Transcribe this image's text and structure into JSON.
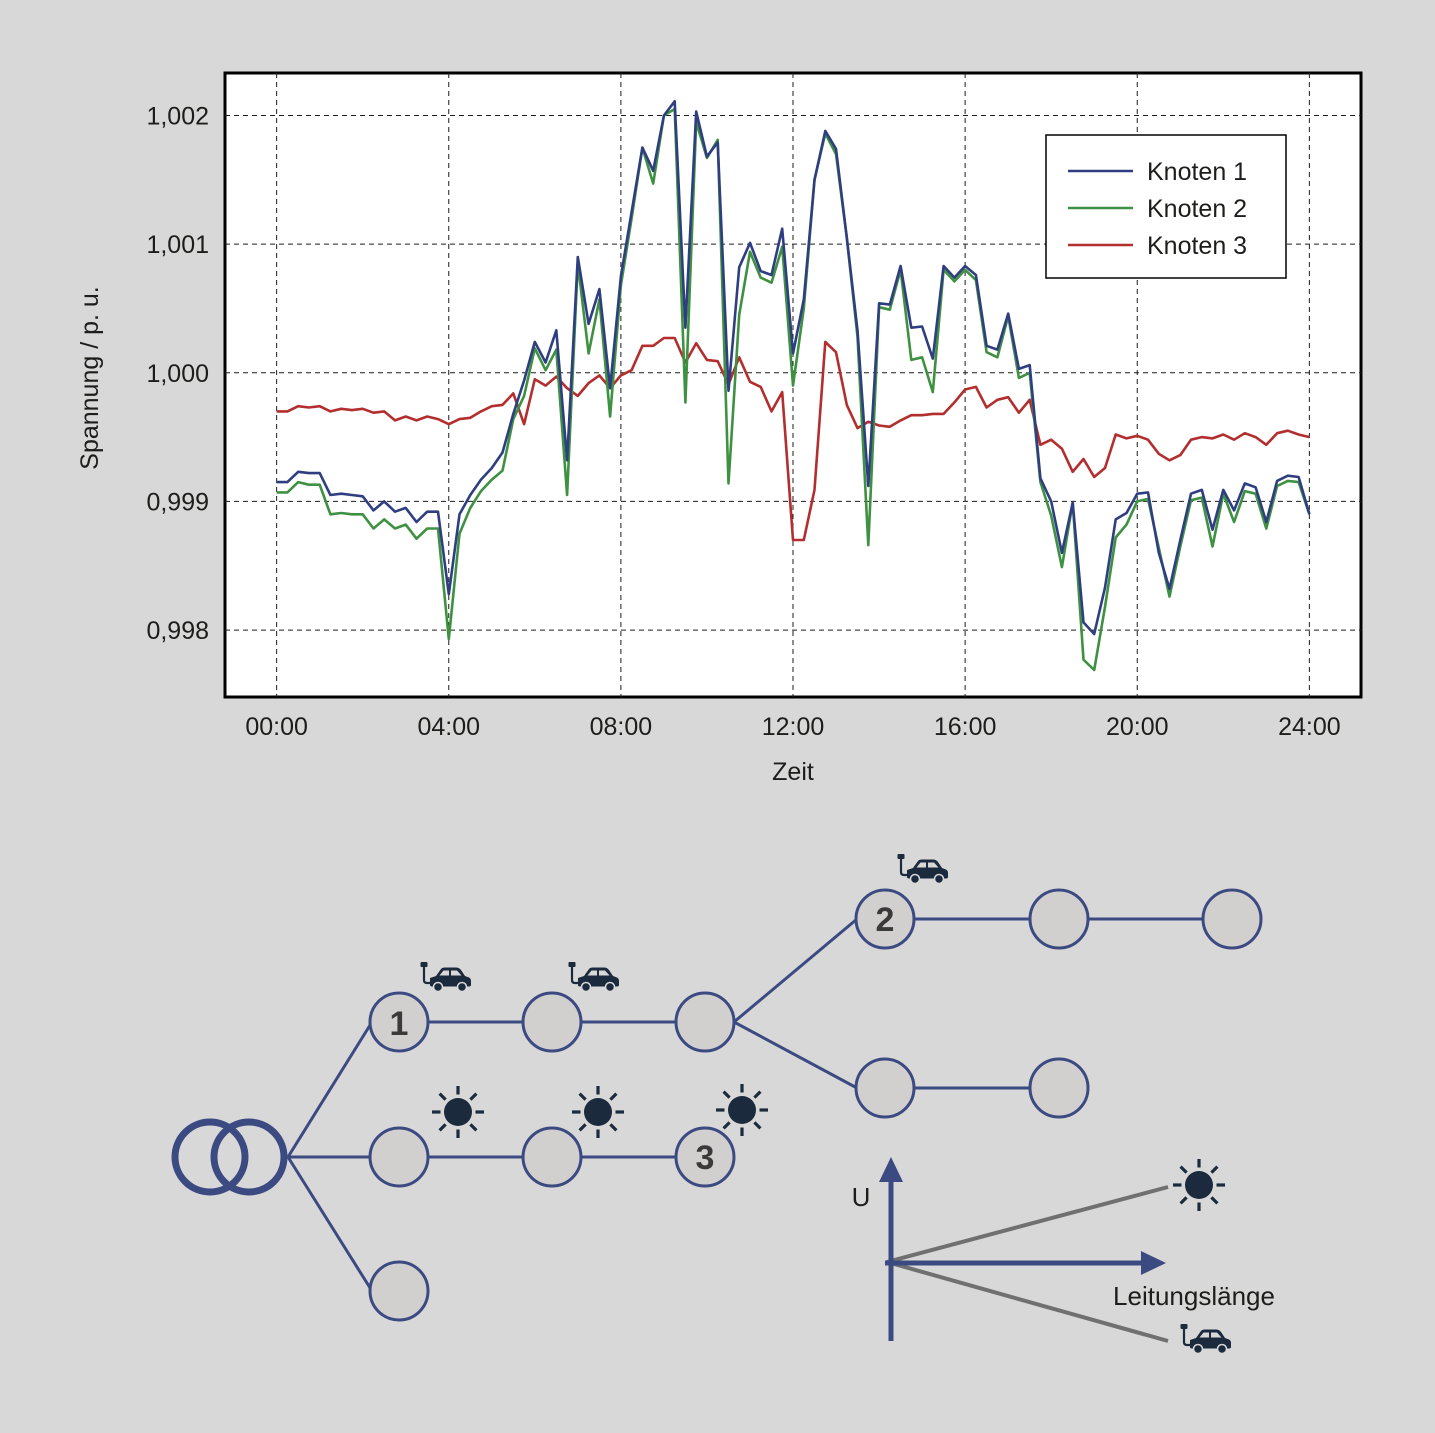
{
  "chart_data": {
    "type": "line",
    "xlabel": "Zeit",
    "ylabel": "Spannung / p. u.",
    "x_ticks": [
      "00:00",
      "04:00",
      "08:00",
      "12:00",
      "16:00",
      "20:00",
      "24:00"
    ],
    "y_ticks": [
      "0,998",
      "0,999",
      "1,000",
      "1,001",
      "1,002"
    ],
    "xlim_hours": [
      -1.2,
      25.2
    ],
    "ylim": [
      0.99748,
      1.00233
    ],
    "grid": true,
    "legend_position": "top-right",
    "series": [
      {
        "name": "Knoten 1",
        "color": "#2f3e80",
        "x": [
          0,
          0.25,
          0.5,
          0.75,
          1,
          1.25,
          1.5,
          1.75,
          2,
          2.25,
          2.5,
          2.75,
          3,
          3.25,
          3.5,
          3.75,
          4,
          4.25,
          4.5,
          4.75,
          5,
          5.25,
          5.5,
          5.75,
          6,
          6.25,
          6.5,
          6.75,
          7,
          7.25,
          7.5,
          7.75,
          8,
          8.25,
          8.5,
          8.75,
          9,
          9.25,
          9.5,
          9.75,
          10,
          10.25,
          10.5,
          10.75,
          11,
          11.25,
          11.5,
          11.75,
          12,
          12.25,
          12.5,
          12.75,
          13,
          13.25,
          13.5,
          13.75,
          14,
          14.25,
          14.5,
          14.75,
          15,
          15.25,
          15.5,
          15.75,
          16,
          16.25,
          16.5,
          16.75,
          17,
          17.25,
          17.5,
          17.75,
          18,
          18.25,
          18.5,
          18.75,
          19,
          19.25,
          19.5,
          19.75,
          20,
          20.25,
          20.5,
          20.75,
          21,
          21.25,
          21.5,
          21.75,
          22,
          22.25,
          22.5,
          22.75,
          23,
          23.25,
          23.5,
          23.75,
          24
        ],
        "values": [
          0.99915,
          0.99915,
          0.99923,
          0.99922,
          0.99922,
          0.99905,
          0.99906,
          0.99905,
          0.99904,
          0.99893,
          0.999,
          0.99892,
          0.99895,
          0.99884,
          0.99892,
          0.99892,
          0.99828,
          0.9989,
          0.99905,
          0.99917,
          0.99926,
          0.99938,
          0.99968,
          0.99994,
          1.00024,
          1.00008,
          1.00033,
          0.99932,
          1.0009,
          1.00038,
          1.00065,
          0.99988,
          1.00075,
          1.00125,
          1.00175,
          1.00157,
          1.002,
          1.00211,
          1.00035,
          1.00203,
          1.00168,
          1.00179,
          0.99986,
          1.00082,
          1.00101,
          1.00079,
          1.00076,
          1.00112,
          1.00015,
          1.00057,
          1.0015,
          1.00188,
          1.00174,
          1.00105,
          1.00033,
          0.99912,
          1.00054,
          1.00053,
          1.00083,
          1.00035,
          1.00036,
          1.00011,
          1.00083,
          1.00074,
          1.00083,
          1.00076,
          1.00021,
          1.00018,
          1.00046,
          1.00003,
          1.00006,
          0.99918,
          0.999,
          0.9986,
          0.99899,
          0.99806,
          0.99797,
          0.99833,
          0.99886,
          0.99891,
          0.99906,
          0.99907,
          0.9986,
          0.99832,
          0.9987,
          0.99906,
          0.99909,
          0.99878,
          0.99909,
          0.99893,
          0.99914,
          0.99911,
          0.99884,
          0.99916,
          0.9992,
          0.99919,
          0.9989
        ]
      },
      {
        "name": "Knoten 2",
        "color": "#3f9142",
        "x": [
          0,
          0.25,
          0.5,
          0.75,
          1,
          1.25,
          1.5,
          1.75,
          2,
          2.25,
          2.5,
          2.75,
          3,
          3.25,
          3.5,
          3.75,
          4,
          4.25,
          4.5,
          4.75,
          5,
          5.25,
          5.5,
          5.75,
          6,
          6.25,
          6.5,
          6.75,
          7,
          7.25,
          7.5,
          7.75,
          8,
          8.25,
          8.5,
          8.75,
          9,
          9.25,
          9.5,
          9.75,
          10,
          10.25,
          10.5,
          10.75,
          11,
          11.25,
          11.5,
          11.75,
          12,
          12.25,
          12.5,
          12.75,
          13,
          13.25,
          13.5,
          13.75,
          14,
          14.25,
          14.5,
          14.75,
          15,
          15.25,
          15.5,
          15.75,
          16,
          16.25,
          16.5,
          16.75,
          17,
          17.25,
          17.5,
          17.75,
          18,
          18.25,
          18.5,
          18.75,
          19,
          19.25,
          19.5,
          19.75,
          20,
          20.25,
          20.5,
          20.75,
          21,
          21.25,
          21.5,
          21.75,
          22,
          22.25,
          22.5,
          22.75,
          23,
          23.25,
          23.5,
          23.75,
          24
        ],
        "values": [
          0.99907,
          0.99907,
          0.99915,
          0.99913,
          0.99913,
          0.9989,
          0.99891,
          0.9989,
          0.9989,
          0.99879,
          0.99886,
          0.99879,
          0.99882,
          0.99871,
          0.99879,
          0.99879,
          0.99793,
          0.99875,
          0.99895,
          0.99908,
          0.99917,
          0.99924,
          0.99964,
          0.99982,
          1.00019,
          1.00002,
          1.00018,
          0.99905,
          1.00085,
          1.00015,
          1.00057,
          0.99966,
          1.00068,
          1.0012,
          1.00175,
          1.00147,
          1.002,
          1.00205,
          0.99977,
          1.00195,
          1.00167,
          1.00181,
          0.99914,
          1.00045,
          1.00094,
          1.00074,
          1.0007,
          1.00098,
          0.9999,
          1.0005,
          1.0015,
          1.00186,
          1.0017,
          1.00105,
          1.00028,
          0.99866,
          1.00051,
          1.00049,
          1.0008,
          1.0001,
          1.00012,
          0.99985,
          1.0008,
          1.00071,
          1.0008,
          1.00072,
          1.00016,
          1.00012,
          1.00044,
          0.99996,
          1.0,
          0.99915,
          0.99889,
          0.99849,
          0.99899,
          0.99777,
          0.99769,
          0.99818,
          0.99872,
          0.99882,
          0.999,
          0.99902,
          0.99864,
          0.99826,
          0.99865,
          0.99901,
          0.99903,
          0.99865,
          0.99906,
          0.99884,
          0.99908,
          0.99906,
          0.99879,
          0.99912,
          0.99916,
          0.99915,
          0.9989
        ]
      },
      {
        "name": "Knoten 3",
        "color": "#b32e2e",
        "x": [
          0,
          0.25,
          0.5,
          0.75,
          1,
          1.25,
          1.5,
          1.75,
          2,
          2.25,
          2.5,
          2.75,
          3,
          3.25,
          3.5,
          3.75,
          4,
          4.25,
          4.5,
          4.75,
          5,
          5.25,
          5.5,
          5.75,
          6,
          6.25,
          6.5,
          6.75,
          7,
          7.25,
          7.5,
          7.75,
          8,
          8.25,
          8.5,
          8.75,
          9,
          9.25,
          9.5,
          9.75,
          10,
          10.25,
          10.5,
          10.75,
          11,
          11.25,
          11.5,
          11.75,
          12,
          12.25,
          12.5,
          12.75,
          13,
          13.25,
          13.5,
          13.75,
          14,
          14.25,
          14.5,
          14.75,
          15,
          15.25,
          15.5,
          15.75,
          16,
          16.25,
          16.5,
          16.75,
          17,
          17.25,
          17.5,
          17.75,
          18,
          18.25,
          18.5,
          18.75,
          19,
          19.25,
          19.5,
          19.75,
          20,
          20.25,
          20.5,
          20.75,
          21,
          21.25,
          21.5,
          21.75,
          22,
          22.25,
          22.5,
          22.75,
          23,
          23.25,
          23.5,
          23.75,
          24
        ],
        "values": [
          0.9997,
          0.9997,
          0.99974,
          0.99973,
          0.99974,
          0.9997,
          0.99972,
          0.99971,
          0.99972,
          0.99969,
          0.9997,
          0.99963,
          0.99966,
          0.99963,
          0.99966,
          0.99964,
          0.9996,
          0.99964,
          0.99965,
          0.9997,
          0.99974,
          0.99975,
          0.99984,
          0.9996,
          0.99995,
          0.9999,
          0.99997,
          0.99988,
          0.99982,
          0.99992,
          0.99998,
          0.99988,
          0.99998,
          1.00002,
          1.00021,
          1.00021,
          1.00027,
          1.00027,
          1.00008,
          1.00023,
          1.0001,
          1.00009,
          0.99991,
          1.00012,
          0.99993,
          0.99989,
          0.9997,
          0.99985,
          0.9987,
          0.9987,
          0.99909,
          1.00024,
          1.00016,
          0.99975,
          0.99957,
          0.99962,
          0.99959,
          0.99958,
          0.99963,
          0.99967,
          0.99967,
          0.99968,
          0.99968,
          0.99977,
          0.99987,
          0.99989,
          0.99973,
          0.99979,
          0.99981,
          0.99969,
          0.99979,
          0.99944,
          0.99948,
          0.99941,
          0.99923,
          0.99933,
          0.99919,
          0.99926,
          0.99952,
          0.99949,
          0.99951,
          0.99948,
          0.99937,
          0.99932,
          0.99936,
          0.99948,
          0.9995,
          0.99949,
          0.99952,
          0.99948,
          0.99953,
          0.9995,
          0.99944,
          0.99953,
          0.99955,
          0.99952,
          0.9995
        ]
      }
    ]
  },
  "diagram": {
    "node_labels": [
      "1",
      "2",
      "3"
    ],
    "line_color": "#3c4a82",
    "node_fill": "#d2cfcf",
    "icon_color": "#1b2a3c",
    "trend_line_color": "#707070",
    "axis_labels": {
      "u_axis": "U",
      "length_axis": "Leitungslänge"
    },
    "icons": {
      "ev": "electric-car-icon",
      "pv": "sun-icon"
    }
  }
}
